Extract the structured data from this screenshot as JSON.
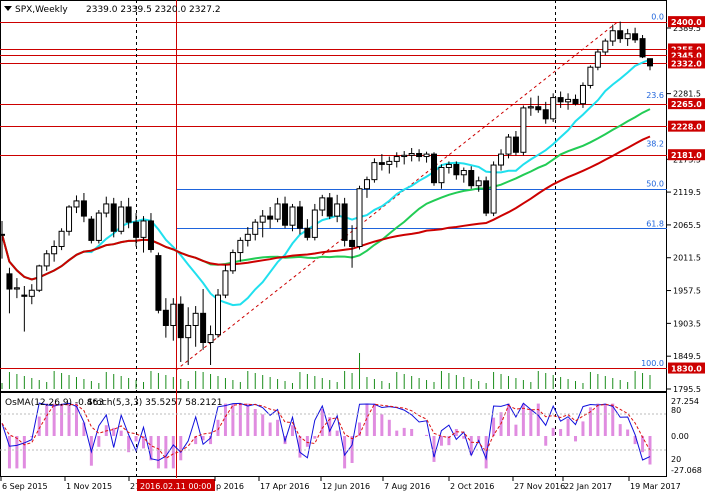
{
  "header": {
    "symbol": "SPX,Weekly",
    "ohlc": "2339.0 2339.5 2320.0 2327.2"
  },
  "osc_header": {
    "osma": "OsMA(12,26,9) -0.463",
    "stoch": "Stoch(5,3,3) 35.5257 58.2121"
  },
  "price_axis": [
    {
      "label": "2389.5",
      "value": 2389.5
    },
    {
      "label": "2281.5",
      "value": 2281.5
    },
    {
      "label": "2173.5",
      "value": 2173.5
    },
    {
      "label": "2119.5",
      "value": 2119.5
    },
    {
      "label": "2065.5",
      "value": 2065.5
    },
    {
      "label": "2011.5",
      "value": 2011.5
    },
    {
      "label": "1957.5",
      "value": 1957.5
    },
    {
      "label": "1903.5",
      "value": 1903.5
    },
    {
      "label": "1849.5",
      "value": 1849.5
    },
    {
      "label": "1795.5",
      "value": 1795.5
    }
  ],
  "levels": [
    {
      "label": "2400.0",
      "value": 2400.0
    },
    {
      "label": "2355.0",
      "value": 2355.0
    },
    {
      "label": "2345.0",
      "value": 2345.0
    },
    {
      "label": "2332.0",
      "value": 2332.0
    },
    {
      "label": "2265.0",
      "value": 2265.0
    },
    {
      "label": "2228.0",
      "value": 2228.0
    },
    {
      "label": "2181.0",
      "value": 2181.0
    },
    {
      "label": "1830.0",
      "value": 1830.0
    }
  ],
  "fib": [
    {
      "label": "0.0",
      "value": 2400.0
    },
    {
      "label": "23.6",
      "value": 2271.0
    },
    {
      "label": "38.2",
      "value": 2191.0
    },
    {
      "label": "50.0",
      "value": 2125.0
    },
    {
      "label": "61.8",
      "value": 2060.0
    },
    {
      "label": "100.0",
      "value": 1830.0
    }
  ],
  "osc_axis": [
    {
      "label": "27.254",
      "value": 27.254
    },
    {
      "label": "80",
      "value": 80
    },
    {
      "label": "0.00",
      "value": 0
    },
    {
      "label": "20",
      "value": 20
    },
    {
      "label": "-27.068",
      "value": -27.068
    }
  ],
  "time_axis": [
    "6 Sep 2015",
    "1 Nov 2015",
    "27",
    "2016.02.11 00:00",
    "p 2016",
    "17 Apr 2016",
    "12 Jun 2016",
    "7 Aug 2016",
    "2 Oct 2016",
    "27 Nov 2016",
    "22 Jan 2017",
    "19 Mar 2017"
  ],
  "colors": {
    "level": "#cc0000",
    "fib": "#1e64dc",
    "ma_fast": "#20e0ee",
    "ma_mid": "#22cc55",
    "ma_slow": "#cc0000",
    "osma": "#e08ce0",
    "stoch_main": "#1010dd",
    "stoch_signal": "#dd1010",
    "volume": "#1a8c1a"
  },
  "chart_data": {
    "type": "candlestick",
    "timeframe": "Weekly",
    "symbol": "SPX",
    "ylim": [
      1795.5,
      2420
    ],
    "candles": [
      {
        "o": 2050,
        "h": 2072,
        "l": 2010,
        "c": 2050
      },
      {
        "o": 1985,
        "h": 1995,
        "l": 1920,
        "c": 1960
      },
      {
        "o": 1960,
        "h": 1978,
        "l": 1945,
        "c": 1962
      },
      {
        "o": 1950,
        "h": 1965,
        "l": 1890,
        "c": 1948
      },
      {
        "o": 1948,
        "h": 1968,
        "l": 1935,
        "c": 1958
      },
      {
        "o": 1958,
        "h": 2000,
        "l": 1955,
        "c": 1998
      },
      {
        "o": 1998,
        "h": 2024,
        "l": 1990,
        "c": 2018
      },
      {
        "o": 2018,
        "h": 2040,
        "l": 2005,
        "c": 2030
      },
      {
        "o": 2030,
        "h": 2060,
        "l": 2024,
        "c": 2055
      },
      {
        "o": 2055,
        "h": 2098,
        "l": 2048,
        "c": 2095
      },
      {
        "o": 2095,
        "h": 2114,
        "l": 2085,
        "c": 2105
      },
      {
        "o": 2105,
        "h": 2118,
        "l": 2070,
        "c": 2080
      },
      {
        "o": 2075,
        "h": 2080,
        "l": 2035,
        "c": 2040
      },
      {
        "o": 2040,
        "h": 2090,
        "l": 2035,
        "c": 2085
      },
      {
        "o": 2085,
        "h": 2112,
        "l": 2078,
        "c": 2100
      },
      {
        "o": 2100,
        "h": 2110,
        "l": 2045,
        "c": 2055
      },
      {
        "o": 2055,
        "h": 2105,
        "l": 2050,
        "c": 2095
      },
      {
        "o": 2095,
        "h": 2110,
        "l": 2060,
        "c": 2070
      },
      {
        "o": 2070,
        "h": 2085,
        "l": 2030,
        "c": 2045
      },
      {
        "o": 2045,
        "h": 2080,
        "l": 2020,
        "c": 2072
      },
      {
        "o": 2072,
        "h": 2085,
        "l": 2020,
        "c": 2025
      },
      {
        "o": 2015,
        "h": 2020,
        "l": 1920,
        "c": 1925
      },
      {
        "o": 1925,
        "h": 1945,
        "l": 1880,
        "c": 1900
      },
      {
        "o": 1900,
        "h": 1945,
        "l": 1875,
        "c": 1935
      },
      {
        "o": 1935,
        "h": 1948,
        "l": 1840,
        "c": 1880
      },
      {
        "o": 1880,
        "h": 1930,
        "l": 1835,
        "c": 1900
      },
      {
        "o": 1900,
        "h": 1932,
        "l": 1865,
        "c": 1920
      },
      {
        "o": 1920,
        "h": 1960,
        "l": 1860,
        "c": 1872
      },
      {
        "o": 1872,
        "h": 1900,
        "l": 1835,
        "c": 1885
      },
      {
        "o": 1885,
        "h": 1960,
        "l": 1880,
        "c": 1950
      },
      {
        "o": 1950,
        "h": 2000,
        "l": 1945,
        "c": 1990
      },
      {
        "o": 1990,
        "h": 2025,
        "l": 1985,
        "c": 2020
      },
      {
        "o": 2020,
        "h": 2045,
        "l": 2005,
        "c": 2040
      },
      {
        "o": 2040,
        "h": 2062,
        "l": 2030,
        "c": 2050
      },
      {
        "o": 2050,
        "h": 2075,
        "l": 2040,
        "c": 2070
      },
      {
        "o": 2070,
        "h": 2090,
        "l": 2045,
        "c": 2080
      },
      {
        "o": 2080,
        "h": 2095,
        "l": 2060,
        "c": 2075
      },
      {
        "o": 2075,
        "h": 2110,
        "l": 2070,
        "c": 2100
      },
      {
        "o": 2100,
        "h": 2112,
        "l": 2060,
        "c": 2065
      },
      {
        "o": 2065,
        "h": 2100,
        "l": 2055,
        "c": 2095
      },
      {
        "o": 2095,
        "h": 2105,
        "l": 2050,
        "c": 2060
      },
      {
        "o": 2060,
        "h": 2075,
        "l": 2040,
        "c": 2045
      },
      {
        "o": 2045,
        "h": 2100,
        "l": 2040,
        "c": 2090
      },
      {
        "o": 2090,
        "h": 2115,
        "l": 2080,
        "c": 2110
      },
      {
        "o": 2110,
        "h": 2118,
        "l": 2075,
        "c": 2080
      },
      {
        "o": 2080,
        "h": 2115,
        "l": 2070,
        "c": 2100
      },
      {
        "o": 2100,
        "h": 2110,
        "l": 2030,
        "c": 2040
      },
      {
        "o": 2040,
        "h": 2065,
        "l": 1995,
        "c": 2030
      },
      {
        "o": 2030,
        "h": 2130,
        "l": 2025,
        "c": 2125
      },
      {
        "o": 2125,
        "h": 2145,
        "l": 2110,
        "c": 2140
      },
      {
        "o": 2140,
        "h": 2175,
        "l": 2135,
        "c": 2168
      },
      {
        "o": 2168,
        "h": 2182,
        "l": 2155,
        "c": 2165
      },
      {
        "o": 2165,
        "h": 2178,
        "l": 2150,
        "c": 2170
      },
      {
        "o": 2170,
        "h": 2185,
        "l": 2160,
        "c": 2178
      },
      {
        "o": 2178,
        "h": 2187,
        "l": 2165,
        "c": 2180
      },
      {
        "o": 2180,
        "h": 2192,
        "l": 2170,
        "c": 2183
      },
      {
        "o": 2183,
        "h": 2190,
        "l": 2170,
        "c": 2178
      },
      {
        "o": 2178,
        "h": 2186,
        "l": 2168,
        "c": 2182
      },
      {
        "o": 2182,
        "h": 2185,
        "l": 2130,
        "c": 2135
      },
      {
        "o": 2135,
        "h": 2165,
        "l": 2125,
        "c": 2160
      },
      {
        "o": 2160,
        "h": 2170,
        "l": 2150,
        "c": 2165
      },
      {
        "o": 2165,
        "h": 2170,
        "l": 2140,
        "c": 2148
      },
      {
        "o": 2148,
        "h": 2160,
        "l": 2135,
        "c": 2155
      },
      {
        "o": 2155,
        "h": 2162,
        "l": 2125,
        "c": 2130
      },
      {
        "o": 2130,
        "h": 2145,
        "l": 2120,
        "c": 2138
      },
      {
        "o": 2138,
        "h": 2145,
        "l": 2080,
        "c": 2085
      },
      {
        "o": 2085,
        "h": 2170,
        "l": 2080,
        "c": 2164
      },
      {
        "o": 2164,
        "h": 2190,
        "l": 2155,
        "c": 2182
      },
      {
        "o": 2182,
        "h": 2215,
        "l": 2175,
        "c": 2210
      },
      {
        "o": 2210,
        "h": 2220,
        "l": 2180,
        "c": 2185
      },
      {
        "o": 2185,
        "h": 2262,
        "l": 2180,
        "c": 2258
      },
      {
        "o": 2258,
        "h": 2275,
        "l": 2245,
        "c": 2260
      },
      {
        "o": 2260,
        "h": 2278,
        "l": 2250,
        "c": 2255
      },
      {
        "o": 2255,
        "h": 2268,
        "l": 2232,
        "c": 2240
      },
      {
        "o": 2240,
        "h": 2282,
        "l": 2235,
        "c": 2275
      },
      {
        "o": 2275,
        "h": 2285,
        "l": 2258,
        "c": 2268
      },
      {
        "o": 2268,
        "h": 2282,
        "l": 2255,
        "c": 2272
      },
      {
        "o": 2272,
        "h": 2280,
        "l": 2262,
        "c": 2265
      },
      {
        "o": 2265,
        "h": 2300,
        "l": 2258,
        "c": 2295
      },
      {
        "o": 2295,
        "h": 2328,
        "l": 2290,
        "c": 2325
      },
      {
        "o": 2325,
        "h": 2355,
        "l": 2320,
        "c": 2350
      },
      {
        "o": 2350,
        "h": 2372,
        "l": 2345,
        "c": 2368
      },
      {
        "o": 2368,
        "h": 2395,
        "l": 2360,
        "c": 2385
      },
      {
        "o": 2385,
        "h": 2400,
        "l": 2365,
        "c": 2372
      },
      {
        "o": 2372,
        "h": 2388,
        "l": 2360,
        "c": 2380
      },
      {
        "o": 2380,
        "h": 2390,
        "l": 2365,
        "c": 2370
      },
      {
        "o": 2372,
        "h": 2378,
        "l": 2340,
        "c": 2342
      },
      {
        "o": 2339,
        "h": 2339.5,
        "l": 2320,
        "c": 2327.2
      }
    ]
  }
}
